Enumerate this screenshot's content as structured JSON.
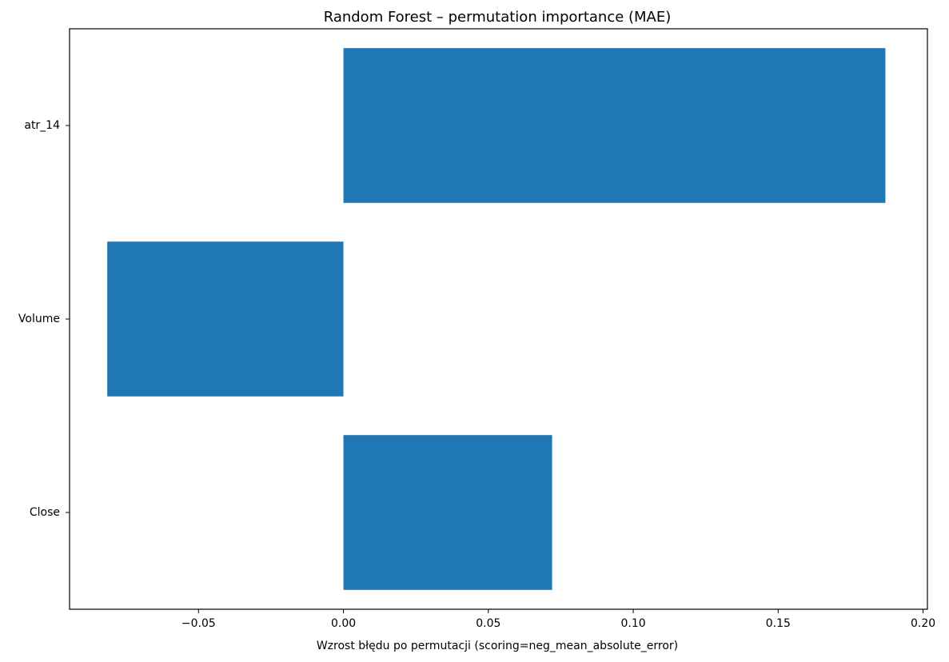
{
  "chart_data": {
    "type": "bar",
    "orientation": "horizontal",
    "title": "Random Forest – permutation importance (MAE)",
    "xlabel": "Wzrost błędu po permutacji (scoring=neg_mean_absolute_error)",
    "ylabel": "",
    "categories": [
      "atr_14",
      "Volume",
      "Close"
    ],
    "values": [
      0.187,
      -0.0815,
      0.072
    ],
    "xlim": [
      -0.0945,
      0.2015
    ],
    "xticks": [
      -0.05,
      0.0,
      0.05,
      0.1,
      0.15,
      0.2
    ],
    "xtick_labels": [
      "−0.05",
      "0.00",
      "0.05",
      "0.10",
      "0.15",
      "0.20"
    ],
    "bar_color": "#1f77b4",
    "grid": false,
    "legend": "none"
  }
}
